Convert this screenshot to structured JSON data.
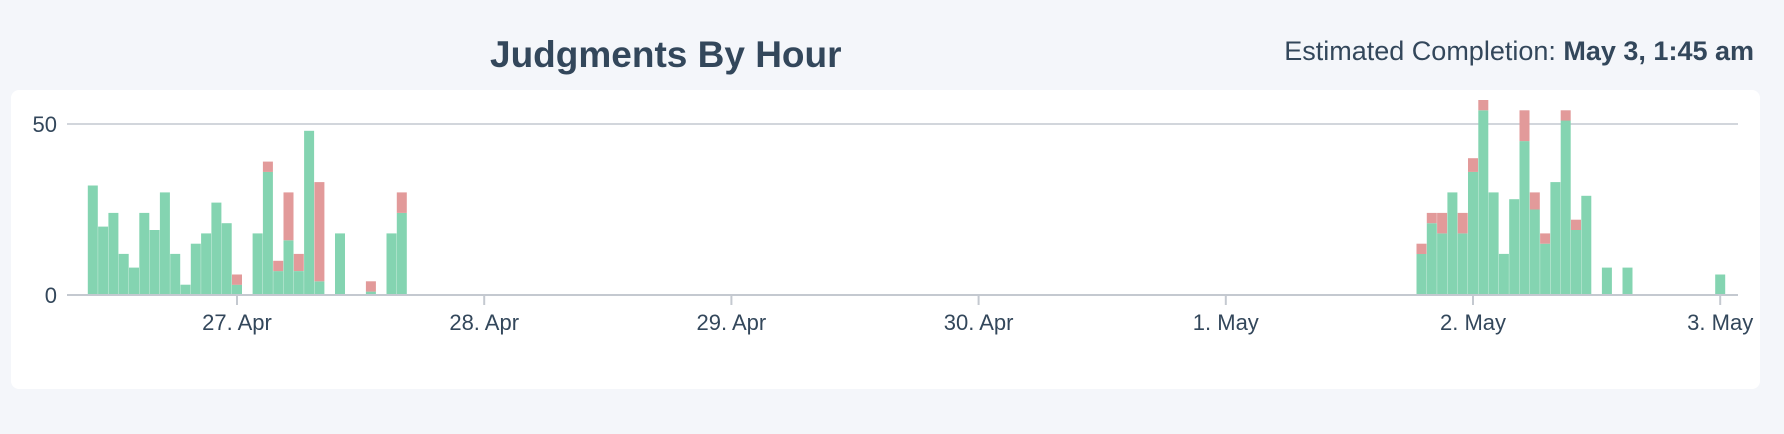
{
  "header": {
    "title": "Judgments By Hour",
    "completion_label": "Estimated Completion:",
    "completion_value": "May 3, 1:45 am"
  },
  "chart_data": {
    "type": "bar",
    "stacked": true,
    "title": "Judgments By Hour",
    "xlabel": "",
    "ylabel": "",
    "ylim": [
      0,
      57
    ],
    "yticks": [
      0,
      50
    ],
    "grid": "horizontal",
    "legend": "none",
    "x_unit": "hour",
    "x_tick_labels": [
      "27. Apr",
      "28. Apr",
      "29. Apr",
      "30. Apr",
      "1. May",
      "2. May",
      "3. May"
    ],
    "x_tick_positions": [
      "2023-04-27T00:00",
      "2023-04-28T00:00",
      "2023-04-29T00:00",
      "2023-04-30T00:00",
      "2023-05-01T00:00",
      "2023-05-02T00:00",
      "2023-05-03T00:00"
    ],
    "x": [
      "2023-04-26T10:00",
      "2023-04-26T11:00",
      "2023-04-26T12:00",
      "2023-04-26T13:00",
      "2023-04-26T14:00",
      "2023-04-26T15:00",
      "2023-04-26T16:00",
      "2023-04-26T17:00",
      "2023-04-26T18:00",
      "2023-04-26T19:00",
      "2023-04-26T20:00",
      "2023-04-26T21:00",
      "2023-04-26T22:00",
      "2023-04-26T23:00",
      "2023-04-27T00:00",
      "2023-04-27T01:00",
      "2023-04-27T02:00",
      "2023-04-27T03:00",
      "2023-04-27T04:00",
      "2023-04-27T05:00",
      "2023-04-27T06:00",
      "2023-04-27T07:00",
      "2023-04-27T08:00",
      "2023-04-27T09:00",
      "2023-04-27T10:00",
      "2023-04-27T11:00",
      "2023-04-27T13:00",
      "2023-04-27T15:00",
      "2023-04-27T16:00",
      "2023-05-01T19:00",
      "2023-05-01T20:00",
      "2023-05-01T21:00",
      "2023-05-01T22:00",
      "2023-05-01T23:00",
      "2023-05-02T00:00",
      "2023-05-02T01:00",
      "2023-05-02T02:00",
      "2023-05-02T03:00",
      "2023-05-02T04:00",
      "2023-05-02T05:00",
      "2023-05-02T06:00",
      "2023-05-02T07:00",
      "2023-05-02T08:00",
      "2023-05-02T09:00",
      "2023-05-02T10:00",
      "2023-05-02T11:00",
      "2023-05-02T13:00",
      "2023-05-02T15:00",
      "2023-05-03T00:00"
    ],
    "series": [
      {
        "color": "#84d4b1",
        "values": [
          32,
          20,
          24,
          12,
          8,
          24,
          19,
          30,
          12,
          3,
          15,
          18,
          27,
          21,
          3,
          0,
          18,
          36,
          7,
          16,
          7,
          48,
          4,
          0,
          18,
          0,
          1,
          18,
          24,
          12,
          21,
          18,
          30,
          18,
          36,
          54,
          30,
          12,
          28,
          45,
          25,
          15,
          33,
          51,
          19,
          29,
          8,
          8,
          6
        ]
      },
      {
        "color": "#e29a9a",
        "values": [
          0,
          0,
          0,
          0,
          0,
          0,
          0,
          0,
          0,
          0,
          0,
          0,
          0,
          0,
          3,
          0,
          0,
          3,
          3,
          14,
          5,
          0,
          29,
          0,
          0,
          0,
          3,
          0,
          6,
          3,
          3,
          6,
          0,
          6,
          4,
          3,
          0,
          0,
          0,
          9,
          5,
          3,
          0,
          3,
          3,
          0,
          0,
          0,
          0
        ]
      }
    ]
  }
}
